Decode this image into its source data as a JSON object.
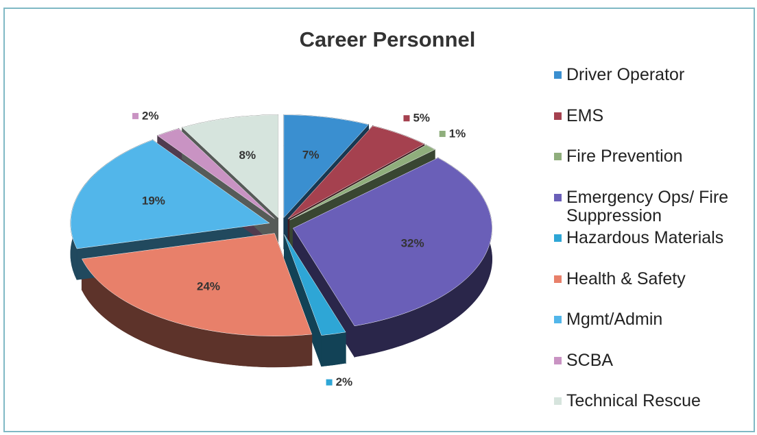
{
  "chart_data": {
    "type": "pie",
    "title": "Career Personnel",
    "categories": [
      "Driver Operator",
      "EMS",
      "Fire Prevention",
      "Emergency Ops/ Fire Suppression",
      "Hazardous Materials",
      "Health & Safety",
      "Mgmt/Admin",
      "SCBA",
      "Technical Rescue"
    ],
    "values": [
      7,
      5,
      1,
      32,
      2,
      24,
      19,
      2,
      8
    ],
    "value_labels": [
      "7%",
      "5%",
      "1%",
      "32%",
      "2%",
      "24%",
      "19%",
      "2%",
      "8%"
    ],
    "colors": [
      "#3a8fd0",
      "#a5414f",
      "#8fae7c",
      "#6a5fb8",
      "#2ea6d6",
      "#e8806a",
      "#52b6ea",
      "#c993c3",
      "#d6e4dd"
    ],
    "legend": "right"
  }
}
